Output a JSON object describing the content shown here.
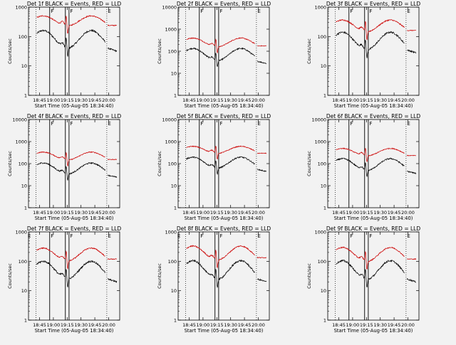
{
  "chart_data": [
    {
      "type": "line",
      "title": "Det 1f BLACK = Events, RED = LLD",
      "ylabel": "Counts/sec",
      "xlabel": "Start Time (05-Aug-05 18:34:40)",
      "yscale": "log",
      "ylim": [
        1,
        1000
      ],
      "y_ticks": [
        "1",
        "10",
        "100",
        "1000"
      ],
      "x_ticks": [
        "18:45",
        "19:00",
        "19:15",
        "19:30",
        "19:45",
        "20:00"
      ],
      "event_markers": [
        "F",
        "F",
        "E"
      ],
      "series": [
        {
          "color": "#000000",
          "mean": 80,
          "amp": 0.3
        },
        {
          "color": "#cc0000",
          "mean": 340,
          "amp": 0.17
        }
      ]
    },
    {
      "type": "line",
      "title": "Det 2f BLACK = Events, RED = LLD",
      "ylabel": "Counts/sec",
      "xlabel": "Start Time (05-Aug-05 18:34:40)",
      "yscale": "log",
      "ylim": [
        1,
        10000
      ],
      "y_ticks": [
        "1",
        "10",
        "100",
        "1000",
        "10000"
      ],
      "x_ticks": [
        "18:45",
        "19:00",
        "19:15",
        "19:30",
        "19:45",
        "20:00"
      ],
      "event_markers": [
        "F",
        "F",
        "E"
      ],
      "series": [
        {
          "color": "#000000",
          "mean": 70,
          "amp": 0.28
        },
        {
          "color": "#cc0000",
          "mean": 250,
          "amp": 0.2
        }
      ]
    },
    {
      "type": "line",
      "title": "Det 3f BLACK = Events, RED = LLD",
      "ylabel": "Counts/sec",
      "xlabel": "Start Time (05-Aug-05 18:34:40)",
      "yscale": "log",
      "ylim": [
        1,
        1000
      ],
      "y_ticks": [
        "1",
        "10",
        "100",
        "1000"
      ],
      "x_ticks": [
        "18:45",
        "19:00",
        "19:15",
        "19:30",
        "19:45",
        "20:00"
      ],
      "event_markers": [
        "F",
        "F",
        "E"
      ],
      "series": [
        {
          "color": "#000000",
          "mean": 70,
          "amp": 0.3
        },
        {
          "color": "#cc0000",
          "mean": 230,
          "amp": 0.2
        }
      ]
    },
    {
      "type": "line",
      "title": "Det 4f BLACK = Events, RED = LLD",
      "ylabel": "Counts/sec",
      "xlabel": "Start Time (05-Aug-05 18:34:40)",
      "yscale": "log",
      "ylim": [
        1,
        10000
      ],
      "y_ticks": [
        "1",
        "10",
        "100",
        "1000",
        "10000"
      ],
      "x_ticks": [
        "18:45",
        "19:00",
        "19:15",
        "19:30",
        "19:45",
        "20:00"
      ],
      "event_markers": [
        "F",
        "F",
        "E"
      ],
      "series": [
        {
          "color": "#000000",
          "mean": 60,
          "amp": 0.25
        },
        {
          "color": "#cc0000",
          "mean": 220,
          "amp": 0.18
        }
      ]
    },
    {
      "type": "line",
      "title": "Det 5f BLACK = Events, RED = LLD",
      "ylabel": "Counts/sec",
      "xlabel": "Start Time (05-Aug-05 18:34:40)",
      "yscale": "log",
      "ylim": [
        1,
        10000
      ],
      "y_ticks": [
        "1",
        "10",
        "100",
        "1000",
        "10000"
      ],
      "x_ticks": [
        "18:45",
        "19:00",
        "19:15",
        "19:30",
        "19:45",
        "20:00"
      ],
      "event_markers": [
        "F",
        "F",
        "E"
      ],
      "series": [
        {
          "color": "#000000",
          "mean": 110,
          "amp": 0.25
        },
        {
          "color": "#cc0000",
          "mean": 420,
          "amp": 0.16
        }
      ]
    },
    {
      "type": "line",
      "title": "Det 6f BLACK = Events, RED = LLD",
      "ylabel": "Counts/sec",
      "xlabel": "Start Time (05-Aug-05 18:34:40)",
      "yscale": "log",
      "ylim": [
        1,
        10000
      ],
      "y_ticks": [
        "1",
        "10",
        "100",
        "1000",
        "10000"
      ],
      "x_ticks": [
        "18:45",
        "19:00",
        "19:15",
        "19:30",
        "19:45",
        "20:00"
      ],
      "event_markers": [
        "F",
        "F",
        "E"
      ],
      "series": [
        {
          "color": "#000000",
          "mean": 90,
          "amp": 0.27
        },
        {
          "color": "#cc0000",
          "mean": 330,
          "amp": 0.17
        }
      ]
    },
    {
      "type": "line",
      "title": "Det 7f BLACK = Events, RED = LLD",
      "ylabel": "Counts/sec",
      "xlabel": "Start Time (05-Aug-05 18:34:40)",
      "yscale": "log",
      "ylim": [
        1,
        1000
      ],
      "y_ticks": [
        "1",
        "10",
        "100",
        "1000"
      ],
      "x_ticks": [
        "18:45",
        "19:00",
        "19:15",
        "19:30",
        "19:45",
        "20:00"
      ],
      "event_markers": [
        "E",
        "F",
        "F",
        "E"
      ],
      "series": [
        {
          "color": "#000000",
          "mean": 50,
          "amp": 0.3
        },
        {
          "color": "#cc0000",
          "mean": 170,
          "amp": 0.22
        }
      ]
    },
    {
      "type": "line",
      "title": "Det 8f BLACK = Events, RED = LLD",
      "ylabel": "Counts/sec",
      "xlabel": "Start Time (05-Aug-05 18:34:40)",
      "yscale": "log",
      "ylim": [
        1,
        1000
      ],
      "y_ticks": [
        "1",
        "10",
        "100",
        "1000"
      ],
      "x_ticks": [
        "18:45",
        "19:00",
        "19:15",
        "19:30",
        "19:45",
        "20:00"
      ],
      "event_markers": [
        "E",
        "F",
        "F",
        "E"
      ],
      "series": [
        {
          "color": "#000000",
          "mean": 50,
          "amp": 0.32
        },
        {
          "color": "#cc0000",
          "mean": 190,
          "amp": 0.24
        }
      ]
    },
    {
      "type": "line",
      "title": "Det 9f BLACK = Events, RED = LLD",
      "ylabel": "Counts/sec",
      "xlabel": "Start Time (05-Aug-05 18:34:40)",
      "yscale": "log",
      "ylim": [
        1,
        1000
      ],
      "y_ticks": [
        "1",
        "10",
        "100",
        "1000"
      ],
      "x_ticks": [
        "18:45",
        "19:00",
        "19:15",
        "19:30",
        "19:45",
        "20:00"
      ],
      "event_markers": [
        "F",
        "F",
        "E"
      ],
      "series": [
        {
          "color": "#000000",
          "mean": 50,
          "amp": 0.32
        },
        {
          "color": "#cc0000",
          "mean": 170,
          "amp": 0.24
        }
      ]
    }
  ]
}
